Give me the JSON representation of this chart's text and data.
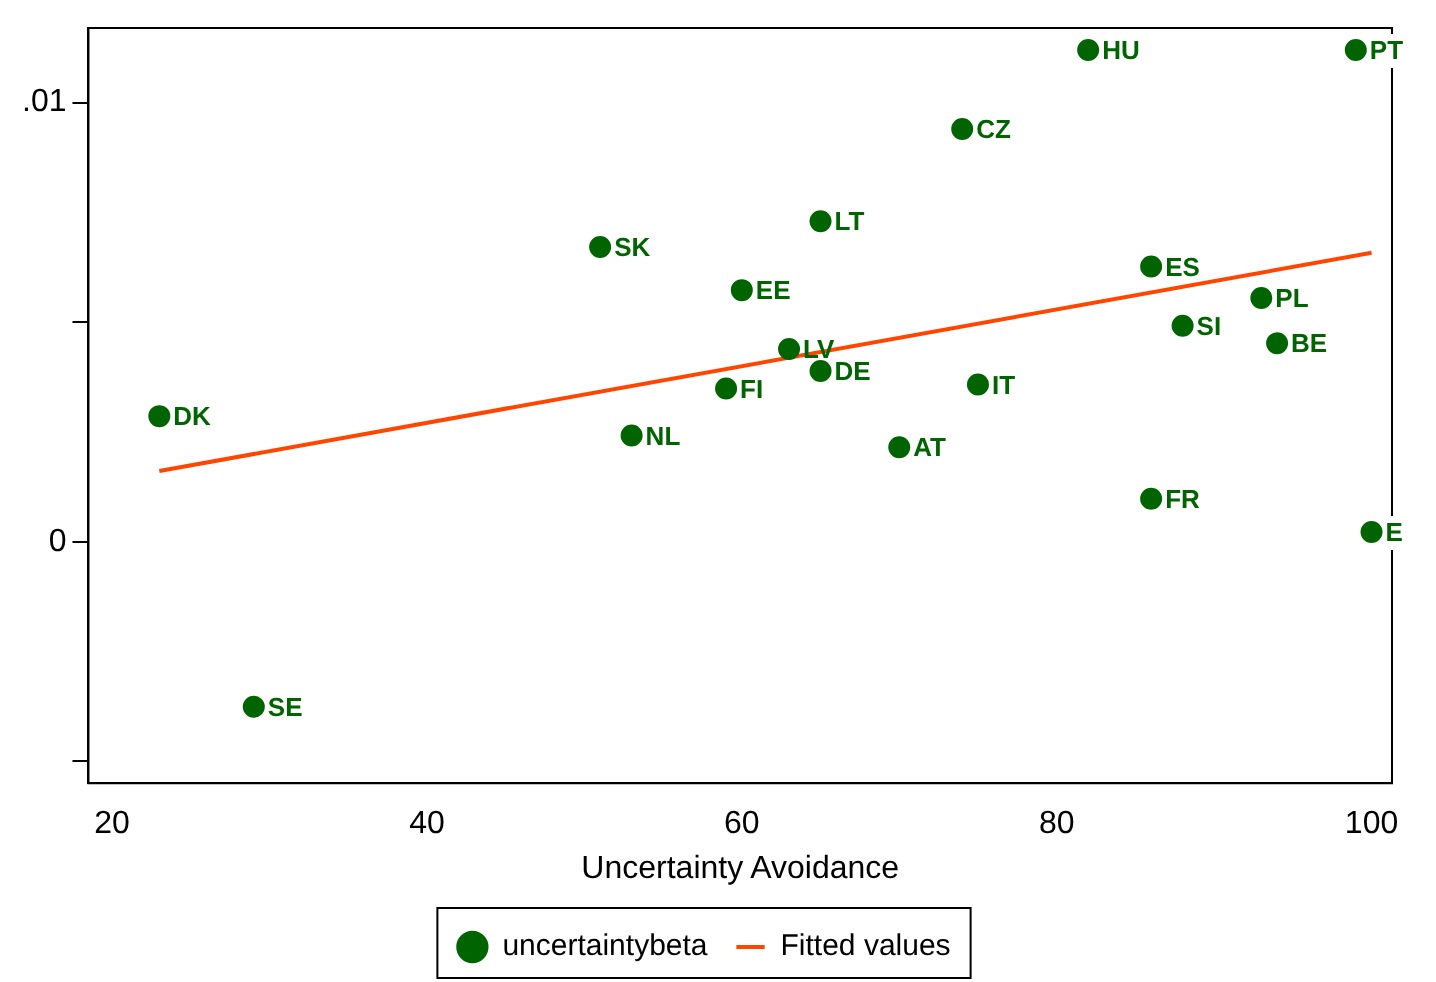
{
  "chart_data": {
    "type": "scatter",
    "xlabel": "Uncertainty Avoidance",
    "xlim": [
      18.5,
      101.3
    ],
    "xticks": [
      20,
      40,
      60,
      80,
      100
    ],
    "ylim": [
      -0.0055,
      0.0117
    ],
    "yticks": [
      {
        "value": -0.005,
        "label": null
      },
      {
        "value": 0,
        "label": "0"
      },
      {
        "value": 0.005,
        "label": null
      },
      {
        "value": 0.01,
        "label": ".01"
      }
    ],
    "grid": false,
    "legend": "bottom",
    "marker": "circle",
    "series": [
      {
        "name": "uncertaintybeta",
        "color": "#006400",
        "x": [
          23,
          29,
          51,
          53,
          59,
          60,
          63,
          65,
          65,
          70,
          74,
          75,
          82,
          86,
          86,
          88,
          93,
          94,
          99,
          100
        ],
        "values": [
          0.00286,
          -0.00376,
          0.00671,
          0.00242,
          0.00349,
          0.00573,
          0.00439,
          0.00389,
          0.0073,
          0.00215,
          0.0094,
          0.00358,
          0.0112,
          0.00627,
          0.00098,
          0.00492,
          0.00555,
          0.00452,
          0.0112,
          0.00022
        ],
        "value_labels": [
          "DK",
          "SE",
          "SK",
          "NL",
          "FI",
          "EE",
          "LV",
          "DE",
          "LT",
          "AT",
          "CZ",
          "IT",
          "HU",
          "ES",
          "FR",
          "SI",
          "PL",
          "BE",
          "PT",
          "E"
        ]
      },
      {
        "name": "Fitted values",
        "type": "line",
        "color": "#ff4500",
        "x": [
          23,
          100
        ],
        "values": [
          0.00161,
          0.00658
        ],
        "marker": "none"
      }
    ]
  }
}
